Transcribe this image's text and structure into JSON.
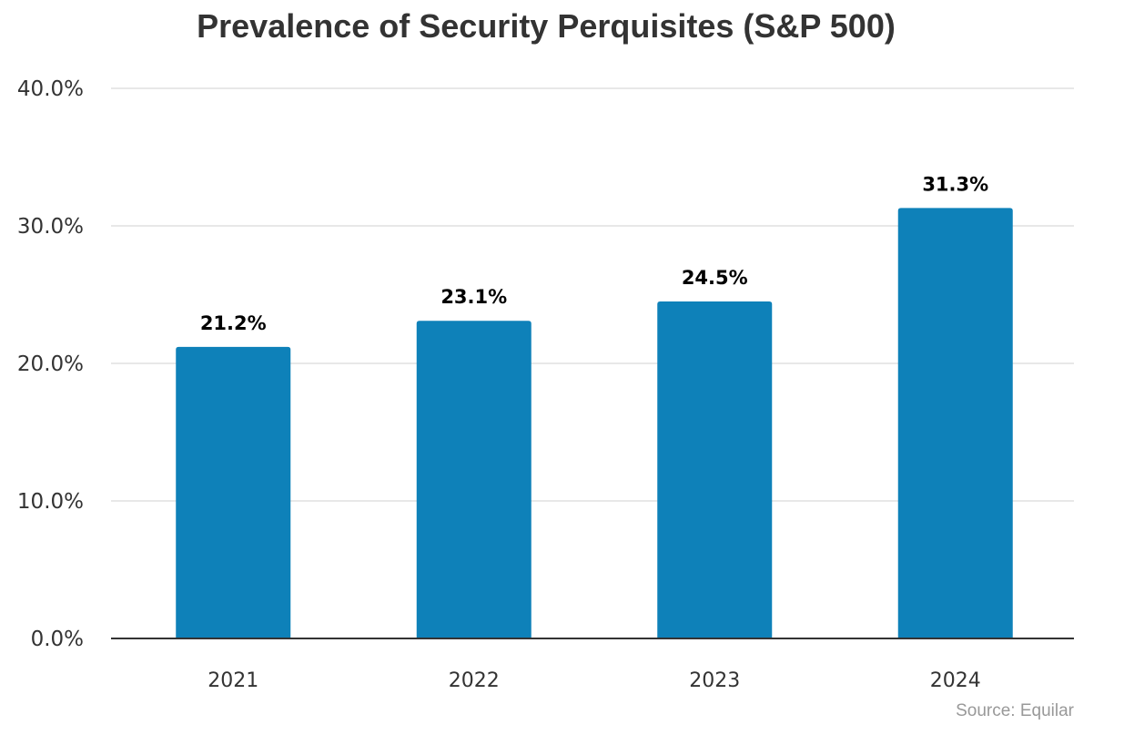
{
  "chart_data": {
    "type": "bar",
    "title": "Prevalence of Security Perquisites (S&P 500)",
    "xlabel": "",
    "ylabel": "",
    "categories": [
      "2021",
      "2022",
      "2023",
      "2024"
    ],
    "values": [
      21.2,
      23.1,
      24.5,
      31.3
    ],
    "data_labels": [
      "21.2%",
      "23.1%",
      "24.5%",
      "31.3%"
    ],
    "ylim": [
      0,
      40
    ],
    "yticks": [
      0,
      10,
      20,
      30,
      40
    ],
    "ytick_labels": [
      "0.0%",
      "10.0%",
      "20.0%",
      "30.0%",
      "40.0%"
    ],
    "grid": true,
    "legend": "none",
    "bar_color": "#0e81b9",
    "source": "Source: Equilar"
  }
}
